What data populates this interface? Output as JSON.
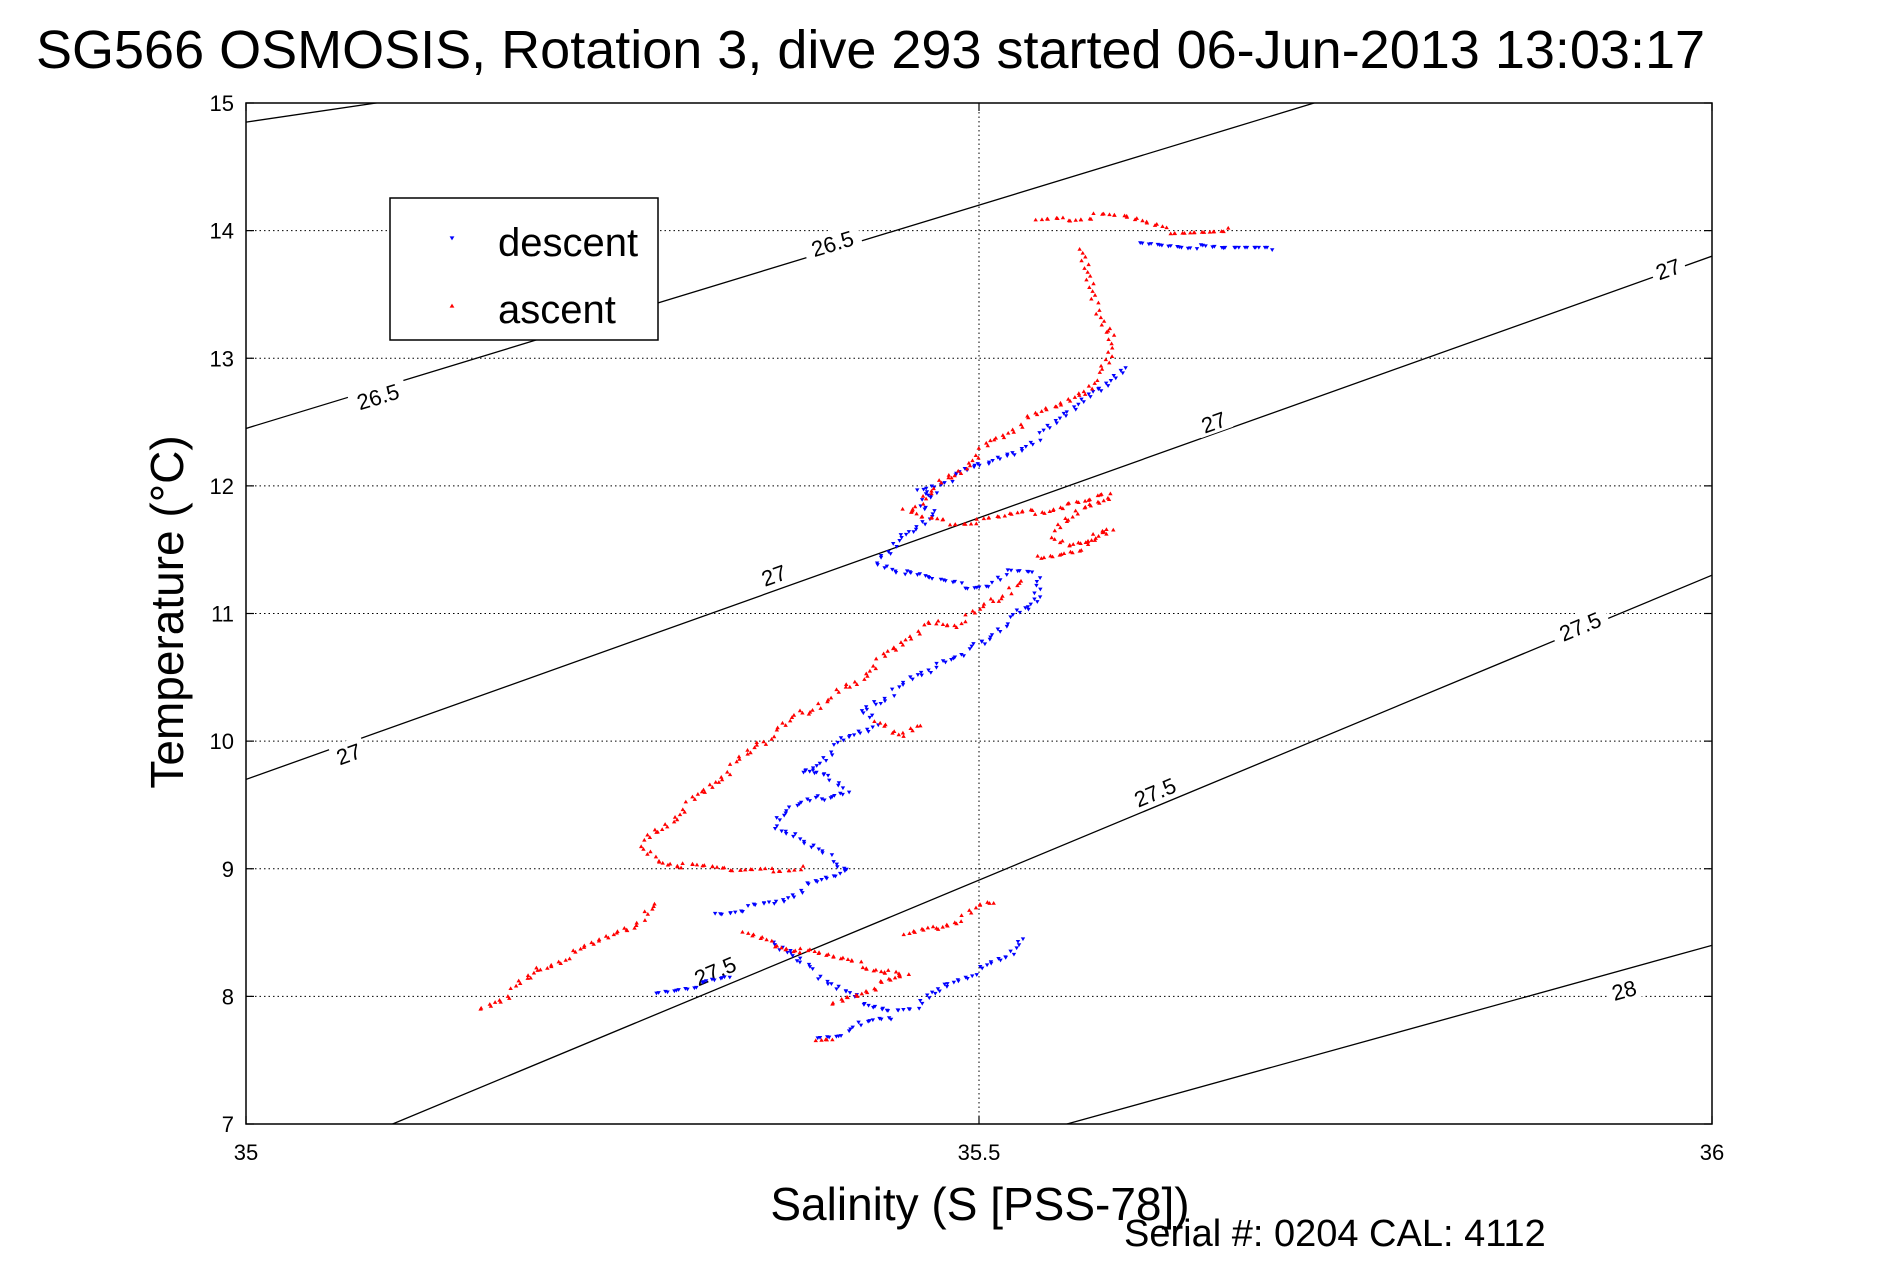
{
  "chart_data": {
    "type": "scatter",
    "title": "SG566 OSMOSIS, Rotation 3, dive 293 started 06-Jun-2013 13:03:17",
    "xlabel": "Salinity (S [PSS-78])",
    "ylabel": "Temperature (°C)",
    "xlim": [
      35,
      36
    ],
    "ylim": [
      7,
      15
    ],
    "xticks": [
      "35",
      "35.5",
      "36"
    ],
    "yticks": [
      "7",
      "8",
      "9",
      "10",
      "11",
      "12",
      "13",
      "14",
      "15"
    ],
    "grid": true,
    "legend_position": "top-left",
    "footer": "Serial #: 0204  CAL: 4112",
    "contours": [
      {
        "level": "26.5",
        "segments": [
          [
            [
              35.0,
              14.85
            ],
            [
              35.68,
              16.0
            ]
          ],
          [
            [
              35.0,
              12.45
            ],
            [
              36.0,
              15.95
            ]
          ]
        ],
        "labels": [
          [
            35.09,
            12.7
          ],
          [
            35.4,
            13.9
          ]
        ]
      },
      {
        "level": "27",
        "segments": [
          [
            [
              35.0,
              9.7
            ],
            [
              36.0,
              13.8
            ]
          ]
        ],
        "labels": [
          [
            35.07,
            9.9
          ],
          [
            35.36,
            11.3
          ],
          [
            35.66,
            12.5
          ],
          [
            35.97,
            13.7
          ]
        ]
      },
      {
        "level": "27.5",
        "segments": [
          [
            [
              35.1,
              7.0
            ],
            [
              36.0,
              11.3
            ]
          ]
        ],
        "labels": [
          [
            35.32,
            8.2
          ],
          [
            35.62,
            9.6
          ],
          [
            35.91,
            10.9
          ]
        ]
      },
      {
        "level": "28",
        "segments": [
          [
            [
              35.56,
              7.0
            ],
            [
              36.0,
              8.4
            ]
          ]
        ],
        "labels": [
          [
            35.94,
            8.05
          ]
        ]
      }
    ],
    "series": [
      {
        "name": "descent",
        "color": "#0000ff",
        "marker": "triangle-down",
        "segments": [
          [
            [
              35.61,
              13.93
            ],
            [
              35.65,
              13.88
            ],
            [
              35.67,
              13.85
            ],
            [
              35.7,
              13.85
            ]
          ],
          [
            [
              35.6,
              12.95
            ],
            [
              35.58,
              12.75
            ],
            [
              35.56,
              12.55
            ],
            [
              35.54,
              12.38
            ],
            [
              35.52,
              12.25
            ],
            [
              35.5,
              12.15
            ],
            [
              35.48,
              12.05
            ],
            [
              35.46,
              11.98
            ],
            [
              35.47,
              11.92
            ],
            [
              35.46,
              11.85
            ],
            [
              35.47,
              11.8
            ],
            [
              35.45,
              11.62
            ],
            [
              35.44,
              11.48
            ],
            [
              35.43,
              11.42
            ],
            [
              35.45,
              11.32
            ],
            [
              35.47,
              11.26
            ],
            [
              35.49,
              11.22
            ],
            [
              35.51,
              11.24
            ],
            [
              35.52,
              11.32
            ],
            [
              35.54,
              11.3
            ],
            [
              35.54,
              11.12
            ],
            [
              35.53,
              11.02
            ],
            [
              35.52,
              10.93
            ],
            [
              35.51,
              10.85
            ],
            [
              35.5,
              10.76
            ],
            [
              35.49,
              10.68
            ],
            [
              35.47,
              10.6
            ],
            [
              35.46,
              10.52
            ],
            [
              35.45,
              10.45
            ],
            [
              35.44,
              10.38
            ],
            [
              35.43,
              10.3
            ],
            [
              35.42,
              10.22
            ],
            [
              35.43,
              10.15
            ],
            [
              35.42,
              10.08
            ],
            [
              35.41,
              10.02
            ],
            [
              35.4,
              9.93
            ],
            [
              35.39,
              9.82
            ],
            [
              35.38,
              9.75
            ],
            [
              35.4,
              9.7
            ],
            [
              35.41,
              9.62
            ],
            [
              35.39,
              9.55
            ],
            [
              35.37,
              9.45
            ],
            [
              35.36,
              9.36
            ],
            [
              35.37,
              9.28
            ],
            [
              35.38,
              9.2
            ],
            [
              35.4,
              9.08
            ],
            [
              35.41,
              9.0
            ],
            [
              35.4,
              8.92
            ],
            [
              35.38,
              8.85
            ],
            [
              35.37,
              8.78
            ],
            [
              35.36,
              8.72
            ],
            [
              35.34,
              8.68
            ],
            [
              35.32,
              8.65
            ]
          ],
          [
            [
              35.36,
              8.45
            ],
            [
              35.37,
              8.35
            ],
            [
              35.38,
              8.25
            ],
            [
              35.39,
              8.18
            ],
            [
              35.4,
              8.1
            ],
            [
              35.41,
              8.02
            ],
            [
              35.42,
              7.96
            ],
            [
              35.44,
              7.9
            ],
            [
              35.46,
              7.92
            ],
            [
              35.47,
              8.03
            ],
            [
              35.48,
              8.12
            ],
            [
              35.5,
              8.2
            ],
            [
              35.52,
              8.3
            ],
            [
              35.53,
              8.45
            ]
          ],
          [
            [
              35.28,
              8.05
            ],
            [
              35.31,
              8.1
            ],
            [
              35.33,
              8.15
            ]
          ],
          [
            [
              35.39,
              7.7
            ],
            [
              35.41,
              7.72
            ],
            [
              35.42,
              7.78
            ],
            [
              35.44,
              7.82
            ]
          ]
        ]
      },
      {
        "name": "ascent",
        "color": "#ff0000",
        "marker": "triangle-up",
        "segments": [
          [
            [
              35.54,
              14.08
            ],
            [
              35.56,
              14.1
            ],
            [
              35.58,
              14.12
            ],
            [
              35.6,
              14.1
            ],
            [
              35.63,
              14.0
            ],
            [
              35.67,
              14.02
            ]
          ],
          [
            [
              35.57,
              13.85
            ],
            [
              35.58,
              13.4
            ],
            [
              35.59,
              13.2
            ],
            [
              35.59,
              13.0
            ],
            [
              35.58,
              12.85
            ],
            [
              35.57,
              12.72
            ],
            [
              35.55,
              12.6
            ],
            [
              35.53,
              12.5
            ],
            [
              35.52,
              12.42
            ],
            [
              35.51,
              12.35
            ],
            [
              35.5,
              12.25
            ],
            [
              35.49,
              12.15
            ],
            [
              35.48,
              12.06
            ],
            [
              35.47,
              11.98
            ],
            [
              35.46,
              11.88
            ],
            [
              35.45,
              11.8
            ],
            [
              35.46,
              11.75
            ],
            [
              35.48,
              11.72
            ],
            [
              35.5,
              11.73
            ],
            [
              35.52,
              11.76
            ],
            [
              35.54,
              11.8
            ],
            [
              35.56,
              11.86
            ],
            [
              35.58,
              11.9
            ],
            [
              35.59,
              11.92
            ],
            [
              35.57,
              11.84
            ],
            [
              35.56,
              11.72
            ],
            [
              35.55,
              11.6
            ],
            [
              35.56,
              11.55
            ],
            [
              35.58,
              11.6
            ],
            [
              35.59,
              11.65
            ],
            [
              35.57,
              11.52
            ],
            [
              35.54,
              11.45
            ]
          ],
          [
            [
              35.53,
              11.25
            ],
            [
              35.52,
              11.18
            ],
            [
              35.51,
              11.1
            ],
            [
              35.5,
              11.02
            ],
            [
              35.49,
              10.96
            ],
            [
              35.48,
              10.9
            ],
            [
              35.47,
              10.92
            ],
            [
              35.46,
              10.88
            ],
            [
              35.45,
              10.8
            ],
            [
              35.44,
              10.7
            ],
            [
              35.43,
              10.6
            ],
            [
              35.42,
              10.5
            ],
            [
              35.41,
              10.42
            ],
            [
              35.4,
              10.34
            ],
            [
              35.39,
              10.28
            ],
            [
              35.38,
              10.22
            ],
            [
              35.37,
              10.15
            ],
            [
              35.36,
              10.06
            ],
            [
              35.35,
              9.98
            ],
            [
              35.34,
              9.88
            ],
            [
              35.33,
              9.78
            ],
            [
              35.32,
              9.68
            ],
            [
              35.31,
              9.58
            ],
            [
              35.3,
              9.48
            ],
            [
              35.29,
              9.38
            ],
            [
              35.28,
              9.28
            ],
            [
              35.27,
              9.18
            ],
            [
              35.28,
              9.08
            ],
            [
              35.3,
              9.02
            ],
            [
              35.33,
              8.98
            ],
            [
              35.36,
              9.0
            ],
            [
              35.38,
              9.02
            ]
          ],
          [
            [
              35.28,
              8.72
            ],
            [
              35.27,
              8.62
            ],
            [
              35.26,
              8.52
            ],
            [
              35.24,
              8.42
            ],
            [
              35.22,
              8.32
            ],
            [
              35.2,
              8.22
            ],
            [
              35.19,
              8.12
            ],
            [
              35.18,
              8.02
            ],
            [
              35.17,
              7.96
            ],
            [
              35.16,
              7.9
            ]
          ],
          [
            [
              35.34,
              8.5
            ],
            [
              35.36,
              8.42
            ],
            [
              35.38,
              8.36
            ],
            [
              35.4,
              8.3
            ],
            [
              35.42,
              8.25
            ],
            [
              35.44,
              8.2
            ],
            [
              35.45,
              8.15
            ],
            [
              35.43,
              8.08
            ],
            [
              35.41,
              8.0
            ],
            [
              35.4,
              7.94
            ]
          ],
          [
            [
              35.45,
              8.48
            ],
            [
              35.47,
              8.55
            ],
            [
              35.49,
              8.62
            ],
            [
              35.5,
              8.7
            ],
            [
              35.51,
              8.73
            ]
          ],
          [
            [
              35.43,
              10.15
            ],
            [
              35.44,
              10.1
            ],
            [
              35.45,
              10.05
            ],
            [
              35.46,
              10.12
            ]
          ],
          [
            [
              35.39,
              7.65
            ],
            [
              35.4,
              7.66
            ]
          ]
        ]
      }
    ]
  }
}
